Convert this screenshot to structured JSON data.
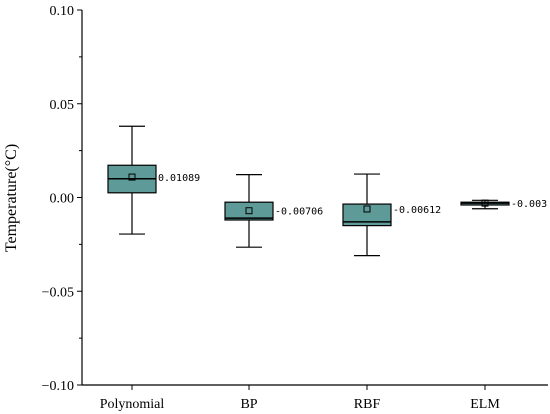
{
  "chart_data": {
    "type": "box",
    "ylabel": "Temperature(°C)",
    "ylim": [
      -0.1,
      0.1
    ],
    "y_ticks": [
      -0.1,
      -0.05,
      0.0,
      0.05,
      0.1
    ],
    "y_tick_labels": [
      "−0.10",
      "−0.05",
      "0.00",
      "0.05",
      "0.10"
    ],
    "grid": false,
    "box_color": "#5e9a98",
    "categories": [
      "Polynomial",
      "BP",
      "RBF",
      "ELM"
    ],
    "boxes": [
      {
        "name": "Polynomial",
        "whisker_low": -0.0195,
        "q1": 0.0025,
        "median": 0.01,
        "q3": 0.0172,
        "whisker_high": 0.038,
        "mean": 0.01089,
        "mean_label": "0.01089"
      },
      {
        "name": "BP",
        "whisker_low": -0.0265,
        "q1": -0.012,
        "median": -0.011,
        "q3": -0.0025,
        "whisker_high": 0.0122,
        "mean": -0.00706,
        "mean_label": "-0.00706"
      },
      {
        "name": "RBF",
        "whisker_low": -0.031,
        "q1": -0.015,
        "median": -0.013,
        "q3": -0.0035,
        "whisker_high": 0.0125,
        "mean": -0.00612,
        "mean_label": "-0.00612"
      },
      {
        "name": "ELM",
        "whisker_low": -0.006,
        "q1": -0.004,
        "median": -0.003,
        "q3": -0.0025,
        "whisker_high": -0.0015,
        "mean": -0.003,
        "mean_label": "-0.003"
      }
    ]
  }
}
